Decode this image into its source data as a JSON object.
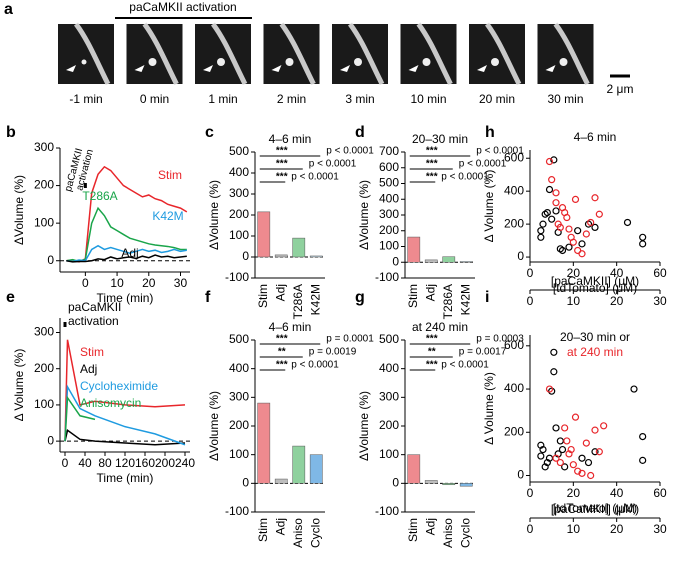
{
  "panel_a": {
    "panel": "a",
    "bracket_label": "paCaMKII activation",
    "time_labels": [
      "-1 min",
      "0 min",
      "1 min",
      "2 min",
      "3 min",
      "10 min",
      "20 min",
      "30 min"
    ],
    "scale_bar": "2 μm"
  },
  "chart_data": [
    {
      "panel": "b",
      "type": "line",
      "annotation": [
        "paCaMKII",
        "activation"
      ],
      "xlabel": "Time (min)",
      "ylabel": "ΔVolume (%)",
      "x": [
        -6,
        -4,
        -2,
        0,
        2,
        4,
        6,
        8,
        10,
        12,
        14,
        16,
        18,
        20,
        22,
        24,
        26,
        28,
        30,
        32
      ],
      "xlim": [
        -8,
        33
      ],
      "xticks": [
        0,
        10,
        20,
        30
      ],
      "ylim": [
        -30,
        300
      ],
      "yticks": [
        0,
        100,
        200,
        300
      ],
      "series": [
        {
          "name": "Stim",
          "color": "#e8262b",
          "values": [
            0,
            2,
            -3,
            5,
            180,
            230,
            250,
            240,
            220,
            200,
            190,
            180,
            170,
            175,
            165,
            160,
            150,
            145,
            140,
            130
          ]
        },
        {
          "name": "T286A",
          "color": "#1aa54a",
          "values": [
            0,
            3,
            -2,
            4,
            100,
            140,
            120,
            90,
            80,
            70,
            60,
            55,
            50,
            45,
            42,
            40,
            38,
            35,
            30,
            30
          ]
        },
        {
          "name": "K42M",
          "color": "#1f9be0",
          "values": [
            0,
            -2,
            2,
            0,
            30,
            40,
            30,
            35,
            30,
            25,
            20,
            25,
            30,
            25,
            28,
            22,
            25,
            30,
            25,
            28
          ]
        },
        {
          "name": "Adj",
          "color": "#000000",
          "values": [
            0,
            -3,
            -2,
            -2,
            0,
            5,
            3,
            10,
            5,
            8,
            10,
            6,
            12,
            8,
            15,
            10,
            12,
            8,
            10,
            12
          ]
        }
      ]
    },
    {
      "panel": "c",
      "type": "bar",
      "title": "4–6 min",
      "ylabel": "ΔVolume (%)",
      "categories": [
        "Stim",
        "Adj",
        "T286A",
        "K42M"
      ],
      "values": [
        215,
        10,
        90,
        5
      ],
      "colors": [
        "#ee8a8f",
        "#bdbdbd",
        "#8fd19e",
        "#cfe8f5"
      ],
      "ylim": [
        -100,
        500
      ],
      "yticks": [
        -100,
        0,
        100,
        200,
        300,
        400,
        500
      ],
      "significance": [
        {
          "stars": "***",
          "p": "p < 0.0001"
        },
        {
          "stars": "***",
          "p": "p < 0.0001"
        },
        {
          "stars": "***",
          "p": "p < 0.0001"
        }
      ]
    },
    {
      "panel": "d",
      "type": "bar",
      "title": "20–30 min",
      "ylabel": "ΔVolume (%)",
      "categories": [
        "Stim",
        "Adj",
        "T286A",
        "K42M"
      ],
      "values": [
        160,
        15,
        35,
        5
      ],
      "colors": [
        "#ee8a8f",
        "#bdbdbd",
        "#8fd19e",
        "#cfe8f5"
      ],
      "ylim": [
        -100,
        700
      ],
      "yticks": [
        -100,
        0,
        100,
        200,
        300,
        400,
        500,
        600,
        700
      ],
      "significance": [
        {
          "stars": "***",
          "p": "p < 0.0001"
        },
        {
          "stars": "***",
          "p": "p < 0.0001"
        },
        {
          "stars": "***",
          "p": "p < 0.0001"
        }
      ]
    },
    {
      "panel": "h",
      "type": "scatter",
      "title": "4–6 min",
      "ylabel": "Δ Volume (%)",
      "xlabel": "[tdTomato] (μM)",
      "x2label": "[paCaMKII] (μM)",
      "xlim": [
        0,
        60
      ],
      "xticks": [
        0,
        20,
        40,
        60
      ],
      "x2lim": [
        0,
        30
      ],
      "x2ticks": [
        0,
        10,
        20,
        30
      ],
      "ylim": [
        -30,
        650
      ],
      "yticks": [
        0,
        200,
        400,
        600
      ],
      "series": [
        {
          "color": "#000000",
          "x": [
            5,
            5,
            6,
            7,
            8,
            9,
            10,
            11,
            12,
            13,
            14,
            15,
            18,
            22,
            24,
            27,
            30,
            45,
            52,
            52
          ],
          "values": [
            120,
            160,
            200,
            260,
            270,
            410,
            230,
            590,
            280,
            150,
            50,
            40,
            60,
            160,
            80,
            200,
            180,
            210,
            120,
            80
          ]
        },
        {
          "color": "#e8262b",
          "x": [
            9,
            10,
            12,
            12,
            13,
            14,
            15,
            16,
            17,
            18,
            19,
            20,
            21,
            22,
            24,
            26,
            28,
            30,
            32
          ],
          "values": [
            580,
            470,
            390,
            330,
            200,
            180,
            300,
            270,
            240,
            170,
            120,
            90,
            350,
            40,
            20,
            140,
            210,
            360,
            260
          ]
        }
      ]
    },
    {
      "panel": "e",
      "type": "line",
      "annotation": [
        "paCaMKII",
        "activation"
      ],
      "xlabel": "Time (min)",
      "ylabel": "Δ Volume (%)",
      "x": [
        0,
        5,
        30,
        60,
        120,
        180,
        240
      ],
      "xlim": [
        -10,
        250
      ],
      "xticks": [
        0,
        40,
        80,
        120,
        160,
        200,
        240
      ],
      "ylim": [
        -30,
        340
      ],
      "yticks": [
        0,
        100,
        200,
        300
      ],
      "series": [
        {
          "name": "Stim",
          "color": "#e8262b",
          "values": [
            0,
            280,
            100,
            110,
            100,
            95,
            100
          ]
        },
        {
          "name": "Adj",
          "color": "#000000",
          "values": [
            0,
            30,
            5,
            0,
            -5,
            -10,
            -5
          ]
        },
        {
          "name": "Cycloheximide",
          "color": "#1f9be0",
          "values": [
            0,
            150,
            90,
            70,
            40,
            20,
            -10
          ]
        },
        {
          "name": "Anisomycin",
          "color": "#1aa54a",
          "values": [
            0,
            120,
            70,
            60,
            null,
            null,
            null
          ]
        }
      ]
    },
    {
      "panel": "f",
      "type": "bar",
      "title": "4–6 min",
      "ylabel": "ΔVolume (%)",
      "categories": [
        "Stim",
        "Adj",
        "Aniso",
        "Cyclo"
      ],
      "values": [
        280,
        15,
        130,
        100
      ],
      "colors": [
        "#ee8a8f",
        "#bdbdbd",
        "#8fd19e",
        "#7fb8e6"
      ],
      "ylim": [
        -100,
        500
      ],
      "yticks": [
        -100,
        0,
        100,
        200,
        300,
        400,
        500
      ],
      "significance": [
        {
          "stars": "***",
          "p": "p = 0.0001"
        },
        {
          "stars": "**",
          "p": "p = 0.0019"
        },
        {
          "stars": "***",
          "p": "p < 0.0001"
        }
      ]
    },
    {
      "panel": "g",
      "type": "bar",
      "title": "at 240 min",
      "ylabel": "ΔVolume (%)",
      "categories": [
        "Stim",
        "Adj",
        "Aniso",
        "Cyclo"
      ],
      "values": [
        100,
        10,
        -5,
        -10
      ],
      "colors": [
        "#ee8a8f",
        "#bdbdbd",
        "#8fd19e",
        "#7fb8e6"
      ],
      "ylim": [
        -100,
        500
      ],
      "yticks": [
        -100,
        0,
        100,
        200,
        300,
        400,
        500
      ],
      "significance": [
        {
          "stars": "***",
          "p": "p = 0.0003"
        },
        {
          "stars": "**",
          "p": "p = 0.0017"
        },
        {
          "stars": "***",
          "p": "p < 0.0001"
        }
      ]
    },
    {
      "panel": "i",
      "type": "scatter",
      "ylabel": "Δ Volume (%)",
      "xlabel": "[tdTomato] (μM)",
      "x2label": "[paCaMKII] (μM)",
      "xlim": [
        0,
        60
      ],
      "xticks": [
        0,
        20,
        40,
        60
      ],
      "x2lim": [
        0,
        30
      ],
      "x2ticks": [
        0,
        10,
        20,
        30
      ],
      "ylim": [
        -30,
        650
      ],
      "yticks": [
        0,
        200,
        400,
        600
      ],
      "series": [
        {
          "name": "20–30 min or",
          "color": "#000000",
          "x": [
            5,
            5,
            6,
            7,
            8,
            9,
            10,
            11,
            11,
            12,
            13,
            14,
            15,
            16,
            24,
            27,
            30,
            48,
            52,
            52
          ],
          "values": [
            140,
            90,
            120,
            40,
            60,
            80,
            390,
            570,
            480,
            220,
            100,
            160,
            120,
            40,
            80,
            60,
            110,
            400,
            180,
            70
          ]
        },
        {
          "name": "at 240 min",
          "color": "#e8262b",
          "x": [
            9,
            12,
            14,
            16,
            17,
            18,
            19,
            20,
            21,
            22,
            24,
            26,
            28,
            30,
            32,
            34
          ],
          "values": [
            400,
            80,
            60,
            220,
            160,
            100,
            120,
            50,
            270,
            20,
            10,
            150,
            0,
            210,
            110,
            230
          ]
        }
      ]
    }
  ]
}
